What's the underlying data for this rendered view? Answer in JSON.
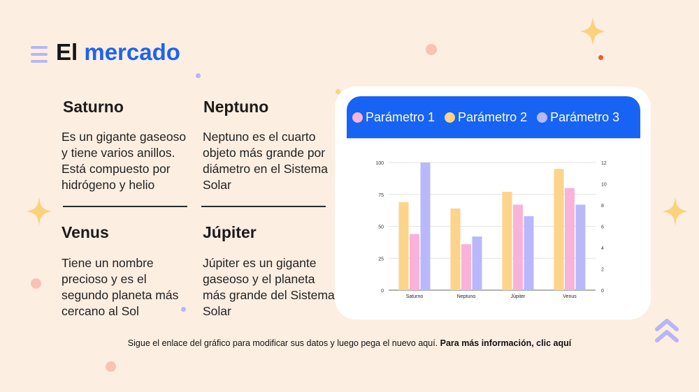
{
  "header": {
    "title_word1": "El",
    "title_word2": "mercado"
  },
  "blocks": [
    {
      "title": "Saturno",
      "text": "Es un gigante gaseoso y tiene varios anillos. Está compuesto por hidrógeno y helio"
    },
    {
      "title": "Neptuno",
      "text": "Neptuno es el cuarto objeto más grande por diámetro en el Sistema Solar"
    },
    {
      "title": "Venus",
      "text": "Tiene un nombre precioso y es el segundo planeta más cercano al Sol"
    },
    {
      "title": "Júpiter",
      "text": "Júpiter es un gigante gaseoso y el planeta más grande del Sistema Solar"
    }
  ],
  "footer": {
    "text": "Sigue el enlace del gráfico para modificar sus datos y luego pega el nuevo aquí.",
    "link": "Para más información, clic aquí"
  },
  "colors": {
    "accent": "#1d63f0",
    "background": "#fdeee2",
    "series1": "#f9b3d8",
    "series2": "#fcd48a",
    "series3": "#b9b8fb"
  },
  "chart_data": {
    "type": "bar",
    "categories": [
      "Saturno",
      "Neptuno",
      "Júpiter",
      "Venus"
    ],
    "series": [
      {
        "name": "Parámetro 1",
        "values": [
          44,
          36,
          67,
          80
        ]
      },
      {
        "name": "Parámetro 2",
        "values": [
          69,
          64,
          77,
          95
        ]
      },
      {
        "name": "Parámetro 3",
        "values": [
          100,
          42,
          58,
          67
        ]
      }
    ],
    "bar_order": [
      "Parámetro 2",
      "Parámetro 1",
      "Parámetro 3"
    ],
    "ylim": [
      0,
      100
    ],
    "yticks": [
      "0",
      "25",
      "50",
      "75",
      "100"
    ],
    "y2lim": [
      0,
      12
    ],
    "y2ticks": [
      "0",
      "2",
      "4",
      "6",
      "8",
      "10",
      "12"
    ],
    "grid": true,
    "legend": "top"
  }
}
